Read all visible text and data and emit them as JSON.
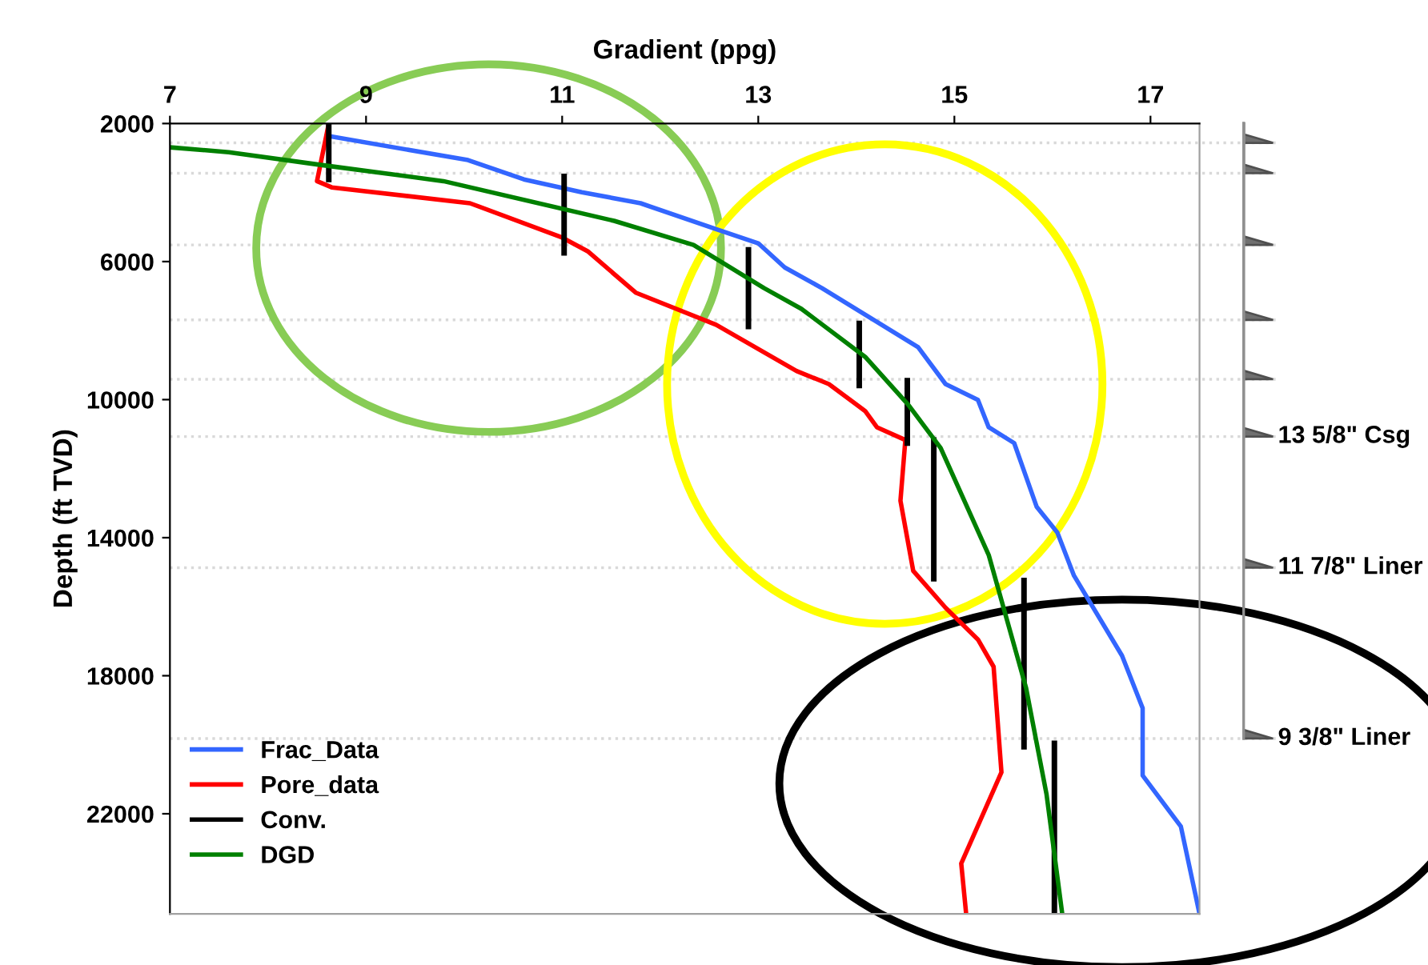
{
  "chart_data": {
    "type": "line",
    "xlabel": "Gradient (ppg)",
    "ylabel": "Depth (ft TVD)",
    "xlim": [
      7,
      17.5
    ],
    "xticks": [
      7,
      9,
      11,
      13,
      15,
      17
    ],
    "ylim": [
      24900,
      2000
    ],
    "yticks": [
      2000,
      6000,
      10000,
      14000,
      18000,
      22000
    ],
    "grid": false,
    "legend": "bottom left",
    "line_style": "solid",
    "marker": "none",
    "series": [
      {
        "name": "Frac_Data",
        "color": "#3366ff",
        "x": [
          8.63,
          10.04,
          10.61,
          11.2,
          11.8,
          12.57,
          13.0,
          13.27,
          13.65,
          14.63,
          14.91,
          15.24,
          15.35,
          15.61,
          15.84,
          16.05,
          16.22,
          16.71,
          16.92,
          16.92,
          17.31,
          17.5
        ],
        "values": [
          2370,
          3060,
          3620,
          3990,
          4310,
          5060,
          5470,
          6170,
          6770,
          8480,
          9550,
          10010,
          10800,
          11260,
          13110,
          13850,
          15100,
          17420,
          18940,
          20890,
          22370,
          24900
        ]
      },
      {
        "name": "Pore_data",
        "color": "#ff0000",
        "x": [
          8.62,
          8.5,
          8.65,
          10.06,
          10.99,
          11.26,
          11.75,
          12.57,
          13.39,
          13.72,
          14.09,
          14.21,
          14.5,
          14.45,
          14.58,
          14.91,
          15.24,
          15.4,
          15.48,
          15.07,
          15.12
        ],
        "values": [
          2000,
          3670,
          3850,
          4310,
          5290,
          5700,
          6900,
          7830,
          9170,
          9550,
          10330,
          10800,
          11170,
          12930,
          14960,
          16030,
          16950,
          17740,
          20800,
          23440,
          24900
        ]
      },
      {
        "name": "Conv.",
        "color": "#000000",
        "x": [
          8.62,
          8.62,
          null,
          11.02,
          11.02,
          null,
          12.9,
          12.9,
          null,
          14.03,
          14.03,
          null,
          14.52,
          14.52,
          null,
          14.79,
          14.79,
          null,
          15.71,
          15.71,
          null,
          16.02,
          16.02
        ],
        "values": [
          2000,
          3620,
          null,
          3530,
          5750,
          null,
          5660,
          7880,
          null,
          7790,
          9590,
          null,
          9450,
          11260,
          null,
          11170,
          15190,
          null,
          15240,
          20060,
          null,
          19960,
          24900
        ]
      },
      {
        "name": "DGD",
        "color": "#008000",
        "x": [
          7.0,
          7.6,
          8.54,
          9.79,
          11.53,
          12.34,
          13.06,
          13.44,
          14.09,
          14.53,
          14.86,
          15.35,
          15.73,
          15.94,
          16.1
        ],
        "values": [
          2690,
          2830,
          3200,
          3670,
          4820,
          5520,
          6770,
          7370,
          8760,
          10150,
          11400,
          14500,
          18340,
          21440,
          24900
        ]
      }
    ],
    "ref_lines": [
      {
        "axis": "y",
        "value": 2560,
        "color": "#d9d9d9",
        "line_style": "dotted"
      },
      {
        "axis": "y",
        "value": 3440,
        "color": "#d9d9d9",
        "line_style": "dotted"
      },
      {
        "axis": "y",
        "value": 5520,
        "color": "#d9d9d9",
        "line_style": "dotted"
      },
      {
        "axis": "y",
        "value": 7690,
        "color": "#d9d9d9",
        "line_style": "dotted"
      },
      {
        "axis": "y",
        "value": 9410,
        "color": "#d9d9d9",
        "line_style": "dotted"
      },
      {
        "axis": "y",
        "value": 11070,
        "label": "13 5/8\" Csg",
        "color": "#d9d9d9",
        "line_style": "dotted"
      },
      {
        "axis": "y",
        "value": 14870,
        "label": "11 7/8\" Liner",
        "color": "#d9d9d9",
        "line_style": "dotted"
      },
      {
        "axis": "y",
        "value": 19820,
        "label": "9 3/8\" Liner",
        "color": "#d9d9d9",
        "line_style": "dotted"
      }
    ]
  }
}
